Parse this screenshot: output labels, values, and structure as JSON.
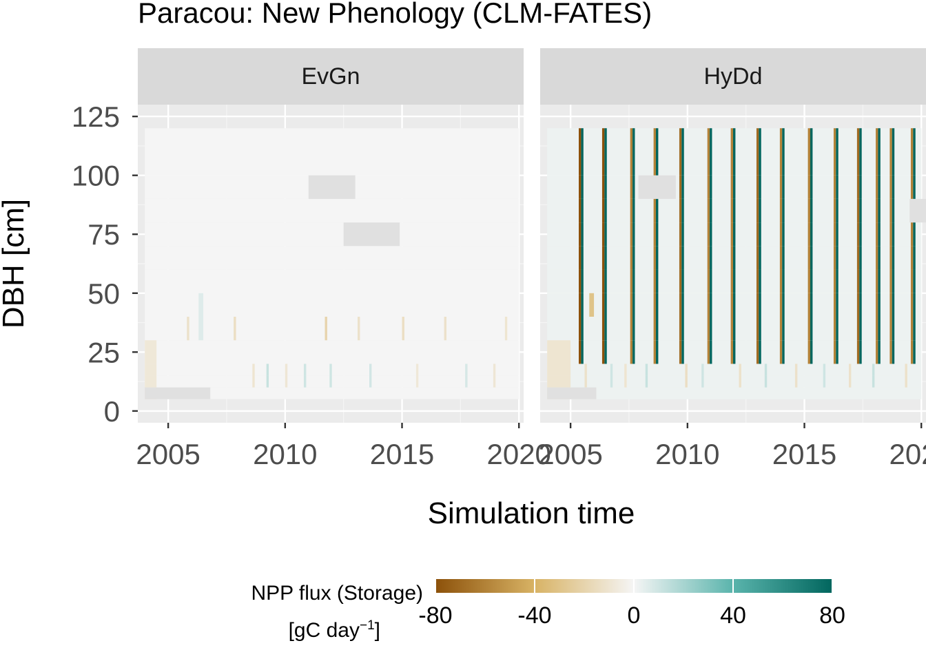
{
  "chart_data": {
    "type": "heatmap",
    "title": "Paracou: New Phenology (CLM-FATES)",
    "xlabel": "Simulation time",
    "ylabel": "DBH [cm]",
    "x_ticks": [
      2005,
      2010,
      2015,
      2020
    ],
    "x_tick_labels": [
      "2005",
      "2010",
      "2015",
      "2020"
    ],
    "xlim": [
      2003.7,
      2020.2
    ],
    "y_ticks": [
      0,
      25,
      50,
      75,
      100,
      125
    ],
    "y_tick_labels": [
      "0",
      "25",
      "50",
      "75",
      "100",
      "125"
    ],
    "ylim": [
      -5,
      130
    ],
    "dbh_bin_edges": [
      5,
      10,
      15,
      20,
      30,
      40,
      50,
      60,
      70,
      80,
      90,
      100,
      120
    ],
    "grid": true,
    "legend": {
      "position": "bottom",
      "title_line1": "NPP flux (Storage)",
      "title_line2_base": "[gC day",
      "title_line2_sup": "−1",
      "title_line2_end": "]",
      "limits": [
        -80,
        80
      ],
      "ticks": [
        -80,
        -40,
        0,
        40,
        80
      ],
      "tick_labels": [
        "-80",
        "-40",
        "0",
        "40",
        "80"
      ],
      "colors": [
        "#8c510a",
        "#d8b365",
        "#f5f5f5",
        "#5ab4ac",
        "#01665e"
      ]
    },
    "panels": [
      {
        "name": "EvGn",
        "background_value": 0,
        "pulses": [
          {
            "bins": [
              0,
              1,
              2,
              3
            ],
            "x": [
              2004.0,
              2004.5
            ],
            "value": -8
          },
          {
            "bins": [
              4
            ],
            "x": [
              2005.8,
              2005.9
            ],
            "value": -12
          },
          {
            "bins": [
              4,
              5
            ],
            "x": [
              2006.3,
              2006.5
            ],
            "value": 6
          },
          {
            "bins": [
              4
            ],
            "x": [
              2007.8,
              2007.9
            ],
            "value": -14
          },
          {
            "bins": [
              1,
              2
            ],
            "x": [
              2008.6,
              2008.7
            ],
            "value": -10
          },
          {
            "bins": [
              1,
              2
            ],
            "x": [
              2009.2,
              2009.3
            ],
            "value": 12
          },
          {
            "bins": [
              1,
              2
            ],
            "x": [
              2010.0,
              2010.1
            ],
            "value": -9
          },
          {
            "bins": [
              1,
              2
            ],
            "x": [
              2010.8,
              2010.9
            ],
            "value": 10
          },
          {
            "bins": [
              4
            ],
            "x": [
              2011.7,
              2011.8
            ],
            "value": -20
          },
          {
            "bins": [
              1,
              2
            ],
            "x": [
              2011.9,
              2012.0
            ],
            "value": 10
          },
          {
            "bins": [
              4
            ],
            "x": [
              2013.1,
              2013.2
            ],
            "value": -12
          },
          {
            "bins": [
              1,
              2
            ],
            "x": [
              2013.6,
              2013.7
            ],
            "value": 9
          },
          {
            "bins": [
              4
            ],
            "x": [
              2015.0,
              2015.1
            ],
            "value": -14
          },
          {
            "bins": [
              1,
              2
            ],
            "x": [
              2015.6,
              2015.7
            ],
            "value": -8
          },
          {
            "bins": [
              4
            ],
            "x": [
              2016.8,
              2016.9
            ],
            "value": -12
          },
          {
            "bins": [
              1,
              2
            ],
            "x": [
              2017.7,
              2017.8
            ],
            "value": 8
          },
          {
            "bins": [
              1,
              2
            ],
            "x": [
              2018.9,
              2019.0
            ],
            "value": -9
          },
          {
            "bins": [
              4
            ],
            "x": [
              2019.4,
              2019.5
            ],
            "value": -10
          },
          {
            "bins": [
              0
            ],
            "x": [
              2004.0,
              2006.8
            ],
            "value": null
          },
          {
            "bins": [
              10
            ],
            "x": [
              2011.0,
              2013.0
            ],
            "value": null
          },
          {
            "bins": [
              8
            ],
            "x": [
              2012.5,
              2014.9
            ],
            "value": null
          }
        ]
      },
      {
        "name": "HyDd",
        "background_value": 2,
        "pulses": [
          {
            "bins": [
              0,
              1,
              2,
              3
            ],
            "x": [
              2004.0,
              2005.0
            ],
            "value": -10
          },
          {
            "bins": [
              3,
              4,
              5,
              6,
              7,
              8,
              9,
              10,
              11
            ],
            "x": [
              2005.35,
              2005.45
            ],
            "value": -80
          },
          {
            "bins": [
              3,
              4,
              5,
              6,
              7,
              8,
              9,
              10,
              11
            ],
            "x": [
              2005.45,
              2005.55
            ],
            "value": 80
          },
          {
            "bins": [
              5
            ],
            "x": [
              2005.8,
              2006.0
            ],
            "value": -30
          },
          {
            "bins": [
              3,
              4,
              5,
              6,
              7,
              8,
              9,
              10,
              11
            ],
            "x": [
              2006.35,
              2006.45
            ],
            "value": -80
          },
          {
            "bins": [
              3,
              4,
              5,
              6,
              7,
              8,
              9,
              10,
              11
            ],
            "x": [
              2006.45,
              2006.55
            ],
            "value": 80
          },
          {
            "bins": [
              3,
              4,
              5,
              6,
              7,
              8,
              9,
              10,
              11
            ],
            "x": [
              2007.55,
              2007.65
            ],
            "value": -60
          },
          {
            "bins": [
              3,
              4,
              5,
              6,
              7,
              8,
              9,
              10,
              11
            ],
            "x": [
              2007.65,
              2007.75
            ],
            "value": 80
          },
          {
            "bins": [
              3,
              4,
              5,
              6,
              7,
              8,
              9,
              10,
              11
            ],
            "x": [
              2008.55,
              2008.65
            ],
            "value": -60
          },
          {
            "bins": [
              3,
              4,
              5,
              6,
              7,
              8,
              9,
              10,
              11
            ],
            "x": [
              2008.65,
              2008.75
            ],
            "value": 80
          },
          {
            "bins": [
              3,
              4,
              5,
              6,
              7,
              8,
              9,
              10,
              11
            ],
            "x": [
              2009.65,
              2009.75
            ],
            "value": -70
          },
          {
            "bins": [
              3,
              4,
              5,
              6,
              7,
              8,
              9,
              10,
              11
            ],
            "x": [
              2009.75,
              2009.85
            ],
            "value": 80
          },
          {
            "bins": [
              3,
              4,
              5,
              6,
              7,
              8,
              9,
              10,
              11
            ],
            "x": [
              2010.85,
              2010.95
            ],
            "value": -60
          },
          {
            "bins": [
              3,
              4,
              5,
              6,
              7,
              8,
              9,
              10,
              11
            ],
            "x": [
              2010.95,
              2011.05
            ],
            "value": 80
          },
          {
            "bins": [
              3,
              4,
              5,
              6,
              7,
              8,
              9,
              10,
              11
            ],
            "x": [
              2011.85,
              2011.95
            ],
            "value": -60
          },
          {
            "bins": [
              3,
              4,
              5,
              6,
              7,
              8,
              9,
              10,
              11
            ],
            "x": [
              2011.95,
              2012.05
            ],
            "value": 80
          },
          {
            "bins": [
              3,
              4,
              5,
              6,
              7,
              8,
              9,
              10,
              11
            ],
            "x": [
              2012.95,
              2013.05
            ],
            "value": -70
          },
          {
            "bins": [
              3,
              4,
              5,
              6,
              7,
              8,
              9,
              10,
              11
            ],
            "x": [
              2013.05,
              2013.15
            ],
            "value": 80
          },
          {
            "bins": [
              3,
              4,
              5,
              6,
              7,
              8,
              9,
              10,
              11
            ],
            "x": [
              2013.95,
              2014.05
            ],
            "value": -60
          },
          {
            "bins": [
              3,
              4,
              5,
              6,
              7,
              8,
              9,
              10,
              11
            ],
            "x": [
              2014.05,
              2014.15
            ],
            "value": 80
          },
          {
            "bins": [
              3,
              4,
              5,
              6,
              7,
              8,
              9,
              10,
              11
            ],
            "x": [
              2015.15,
              2015.25
            ],
            "value": -60
          },
          {
            "bins": [
              3,
              4,
              5,
              6,
              7,
              8,
              9,
              10,
              11
            ],
            "x": [
              2015.25,
              2015.35
            ],
            "value": 80
          },
          {
            "bins": [
              3,
              4,
              5,
              6,
              7,
              8,
              9,
              10,
              11
            ],
            "x": [
              2016.25,
              2016.35
            ],
            "value": -60
          },
          {
            "bins": [
              3,
              4,
              5,
              6,
              7,
              8,
              9,
              10,
              11
            ],
            "x": [
              2016.35,
              2016.45
            ],
            "value": 80
          },
          {
            "bins": [
              3,
              4,
              5,
              6,
              7,
              8,
              9,
              10,
              11
            ],
            "x": [
              2017.25,
              2017.35
            ],
            "value": -70
          },
          {
            "bins": [
              3,
              4,
              5,
              6,
              7,
              8,
              9,
              10,
              11
            ],
            "x": [
              2017.35,
              2017.45
            ],
            "value": 80
          },
          {
            "bins": [
              3,
              4,
              5,
              6,
              7,
              8,
              9,
              10,
              11
            ],
            "x": [
              2018.05,
              2018.15
            ],
            "value": -60
          },
          {
            "bins": [
              3,
              4,
              5,
              6,
              7,
              8,
              9,
              10,
              11
            ],
            "x": [
              2018.15,
              2018.25
            ],
            "value": 80
          },
          {
            "bins": [
              3,
              4,
              5,
              6,
              7,
              8,
              9,
              10,
              11
            ],
            "x": [
              2018.65,
              2018.75
            ],
            "value": -60
          },
          {
            "bins": [
              3,
              4,
              5,
              6,
              7,
              8,
              9,
              10,
              11
            ],
            "x": [
              2018.75,
              2018.85
            ],
            "value": 80
          },
          {
            "bins": [
              3,
              4,
              5,
              6,
              7,
              8,
              9,
              10,
              11
            ],
            "x": [
              2019.55,
              2019.65
            ],
            "value": -60
          },
          {
            "bins": [
              3,
              4,
              5,
              6,
              7,
              8,
              9,
              10,
              11
            ],
            "x": [
              2019.65,
              2019.75
            ],
            "value": 80
          },
          {
            "bins": [
              1,
              2
            ],
            "x": [
              2005.6,
              2005.7
            ],
            "value": -12
          },
          {
            "bins": [
              1,
              2
            ],
            "x": [
              2006.7,
              2006.8
            ],
            "value": 10
          },
          {
            "bins": [
              1,
              2
            ],
            "x": [
              2007.3,
              2007.4
            ],
            "value": -10
          },
          {
            "bins": [
              1,
              2
            ],
            "x": [
              2008.2,
              2008.3
            ],
            "value": 12
          },
          {
            "bins": [
              1,
              2
            ],
            "x": [
              2009.9,
              2010.0
            ],
            "value": -14
          },
          {
            "bins": [
              1,
              2
            ],
            "x": [
              2010.6,
              2010.7
            ],
            "value": 10
          },
          {
            "bins": [
              1,
              2
            ],
            "x": [
              2012.2,
              2012.3
            ],
            "value": -12
          },
          {
            "bins": [
              1,
              2
            ],
            "x": [
              2013.3,
              2013.4
            ],
            "value": 12
          },
          {
            "bins": [
              1,
              2
            ],
            "x": [
              2014.6,
              2014.7
            ],
            "value": -12
          },
          {
            "bins": [
              1,
              2
            ],
            "x": [
              2015.8,
              2015.9
            ],
            "value": 10
          },
          {
            "bins": [
              1,
              2
            ],
            "x": [
              2016.9,
              2017.0
            ],
            "value": -12
          },
          {
            "bins": [
              1,
              2
            ],
            "x": [
              2017.9,
              2018.0
            ],
            "value": 12
          },
          {
            "bins": [
              1,
              2
            ],
            "x": [
              2019.3,
              2019.4
            ],
            "value": -12
          },
          {
            "bins": [
              0
            ],
            "x": [
              2004.0,
              2006.1
            ],
            "value": null
          },
          {
            "bins": [
              10
            ],
            "x": [
              2007.9,
              2009.5
            ],
            "value": null
          },
          {
            "bins": [
              9
            ],
            "x": [
              2019.5,
              2020.2
            ],
            "value": null
          }
        ]
      }
    ]
  }
}
